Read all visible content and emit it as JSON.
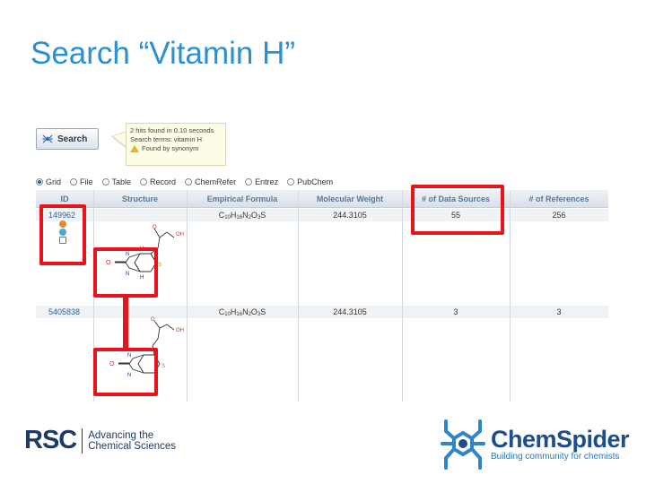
{
  "slide": {
    "title": "Search “Vitamin H”"
  },
  "search_button": {
    "label": "Search",
    "icon": "spider-icon"
  },
  "callout": {
    "line1": "2 hits found in 0.10 seconds",
    "line2": "Search terms: vitamin H",
    "line3": "Found by synonym",
    "icon": "warning-icon"
  },
  "views": [
    {
      "label": "Grid",
      "selected": true
    },
    {
      "label": "File",
      "selected": false
    },
    {
      "label": "Table",
      "selected": false
    },
    {
      "label": "Record",
      "selected": false
    },
    {
      "label": "ChemRefer",
      "selected": false
    },
    {
      "label": "Entrez",
      "selected": false
    },
    {
      "label": "PubChem",
      "selected": false
    }
  ],
  "table": {
    "headers": [
      "ID",
      "Structure",
      "Empirical Formula",
      "Molecular Weight",
      "# of Data Sources",
      "# of References"
    ],
    "rows": [
      {
        "id": "149962",
        "formula": {
          "c": "C",
          "c_n": "10",
          "h": "H",
          "h_n": "16",
          "n": "N",
          "n_n": "2",
          "o": "O",
          "o_n": "3",
          "s": "S"
        },
        "weight": "244.3105",
        "sources": "55",
        "references": "256"
      },
      {
        "id": "5405838",
        "formula": {
          "c": "C",
          "c_n": "10",
          "h": "H",
          "h_n": "16",
          "n": "N",
          "n_n": "2",
          "o": "O",
          "o_n": "3",
          "s": "S"
        },
        "weight": "244.3105",
        "sources": "3",
        "references": "3"
      }
    ],
    "structure_labels": {
      "oh": "OH",
      "o": "O",
      "n": "N",
      "h": "H",
      "s": "S"
    }
  },
  "footer": {
    "rsc_mark": "RSC",
    "rsc_line1": "Advancing the",
    "rsc_line2": "Chemical Sciences",
    "cs_brand": "ChemSpider",
    "cs_tagline": "Building community for chemists"
  },
  "colors": {
    "title": "#2a8fd6",
    "highlight": "#e8141c",
    "rsc_navy": "#1d3a67",
    "chemspider_blue": "#1d4d8e"
  }
}
